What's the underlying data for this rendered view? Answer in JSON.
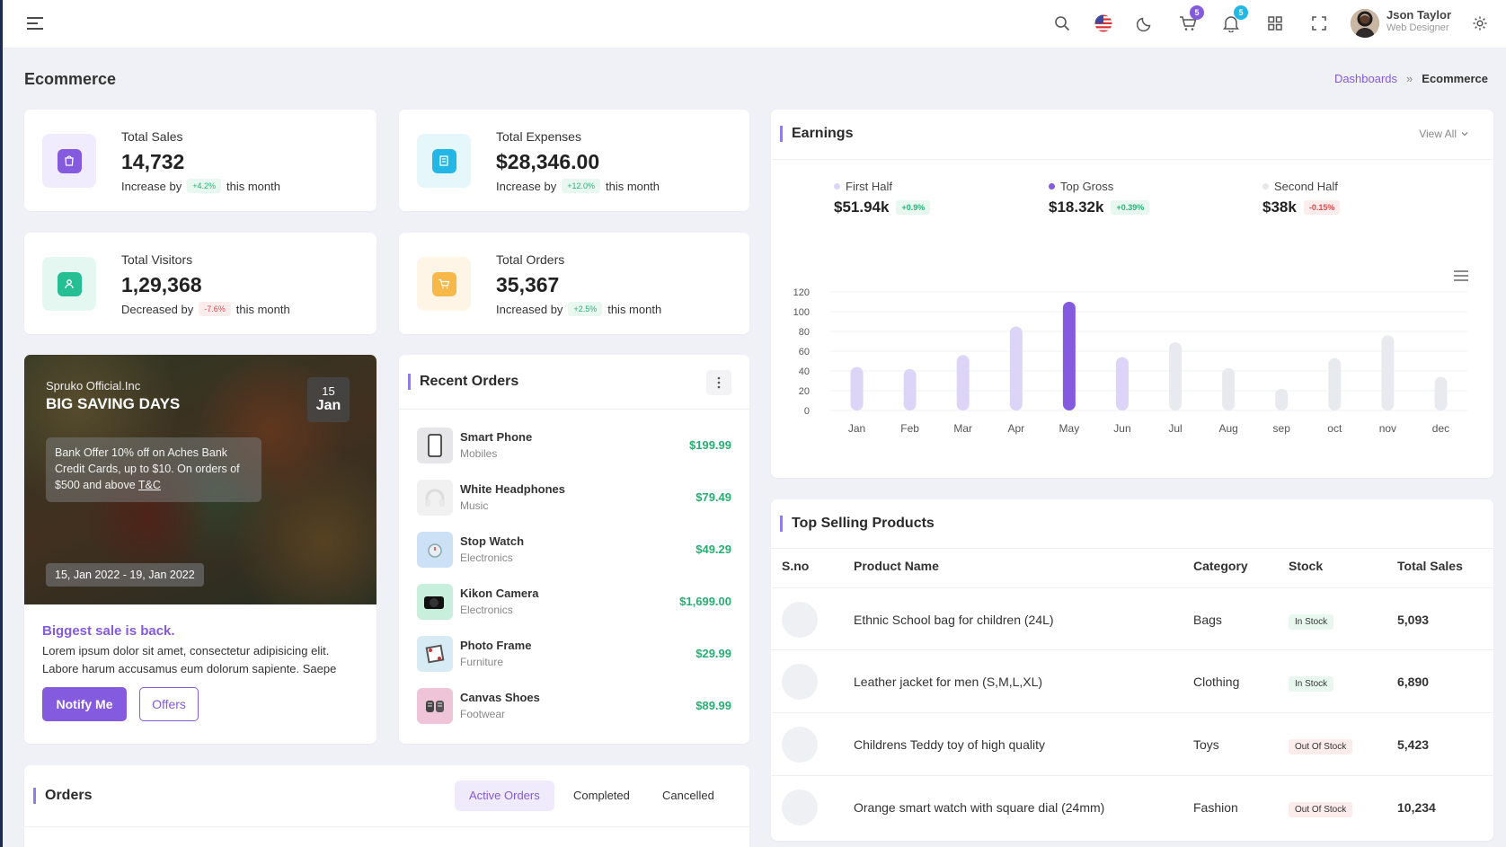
{
  "header": {
    "user_name": "Json Taylor",
    "user_role": "Web Designer",
    "cart_count": "5",
    "notif_count": "5"
  },
  "page": {
    "title": "Ecommerce",
    "breadcrumb_root": "Dashboards",
    "breadcrumb_sep": "»",
    "breadcrumb_current": "Ecommerce"
  },
  "stats": [
    {
      "label": "Total Sales",
      "value": "14,732",
      "foot_pre": "Increase by",
      "pill": "+4.2%",
      "foot_post": "this month"
    },
    {
      "label": "Total Expenses",
      "value": "$28,346.00",
      "foot_pre": "Increase by",
      "pill": "+12.0%",
      "foot_post": "this month"
    },
    {
      "label": "Total Visitors",
      "value": "1,29,368",
      "foot_pre": "Decreased by",
      "pill": "-7.6%",
      "foot_post": "this month"
    },
    {
      "label": "Total Orders",
      "value": "35,367",
      "foot_pre": "Increased by",
      "pill": "+2.5%",
      "foot_post": "this month"
    }
  ],
  "promo": {
    "brand": "Spruko Official.Inc",
    "headline": "BIG SAVING DAYS",
    "day": "15",
    "month": "Jan",
    "offer_text": "Bank Offer 10% off on Aches Bank Credit Cards, up to $10. On orders of $500 and above",
    "offer_link": "T&C",
    "date_range": "15, Jan 2022 - 19, Jan 2022",
    "sale_title": "Biggest sale is back.",
    "sale_text": "Lorem ipsum dolor sit amet, consectetur adipisicing elit. Labore harum accusamus eum dolorum sapiente. Saepe",
    "notify_label": "Notify Me",
    "offers_label": "Offers"
  },
  "recent_orders": {
    "title": "Recent Orders",
    "items": [
      {
        "name": "Smart Phone",
        "category": "Mobiles",
        "price": "$199.99"
      },
      {
        "name": "White Headphones",
        "category": "Music",
        "price": "$79.49"
      },
      {
        "name": "Stop Watch",
        "category": "Electronics",
        "price": "$49.29"
      },
      {
        "name": "Kikon Camera",
        "category": "Electronics",
        "price": "$1,699.00"
      },
      {
        "name": "Photo Frame",
        "category": "Furniture",
        "price": "$29.99"
      },
      {
        "name": "Canvas Shoes",
        "category": "Footwear",
        "price": "$89.99"
      }
    ]
  },
  "earnings": {
    "title": "Earnings",
    "view_all": "View All",
    "legend": [
      {
        "label": "First Half",
        "value": "$51.94k",
        "pill": "+0.9%",
        "color": "#d9d1f7"
      },
      {
        "label": "Top Gross",
        "value": "$18.32k",
        "pill": "+0.39%",
        "color": "#845adf"
      },
      {
        "label": "Second Half",
        "value": "$38k",
        "pill": "-0.15%",
        "color": "#e6e7ec"
      }
    ]
  },
  "chart_data": {
    "type": "bar",
    "categories": [
      "Jan",
      "Feb",
      "Mar",
      "Apr",
      "May",
      "Jun",
      "Jul",
      "Aug",
      "sep",
      "oct",
      "nov",
      "dec"
    ],
    "values": [
      44,
      42,
      56,
      85,
      110,
      54,
      69,
      43,
      22,
      53,
      76,
      34
    ],
    "colors": [
      "#ddd5f8",
      "#ddd5f8",
      "#ddd5f8",
      "#ddd5f8",
      "#845adf",
      "#ddd5f8",
      "#e9eaef",
      "#e9eaef",
      "#e9eaef",
      "#e9eaef",
      "#e9eaef",
      "#e9eaef"
    ],
    "ylim": [
      0,
      120
    ],
    "yticks": [
      "120",
      "100",
      "80",
      "60",
      "40",
      "20",
      "0"
    ],
    "grid": true
  },
  "top_selling": {
    "title": "Top Selling Products",
    "headers": [
      "S.no",
      "Product Name",
      "Category",
      "Stock",
      "Total Sales"
    ],
    "rows": [
      {
        "name": "Ethnic School bag for children (24L)",
        "category": "Bags",
        "stock": "In Stock",
        "sales": "5,093"
      },
      {
        "name": "Leather jacket for men (S,M,L,XL)",
        "category": "Clothing",
        "stock": "In Stock",
        "sales": "6,890"
      },
      {
        "name": "Childrens Teddy toy of high quality",
        "category": "Toys",
        "stock": "Out Of Stock",
        "sales": "5,423"
      },
      {
        "name": "Orange smart watch with square dial (24mm)",
        "category": "Fashion",
        "stock": "Out Of Stock",
        "sales": "10,234"
      }
    ]
  },
  "orders": {
    "title": "Orders",
    "tabs": [
      "Active Orders",
      "Completed",
      "Cancelled"
    ]
  }
}
